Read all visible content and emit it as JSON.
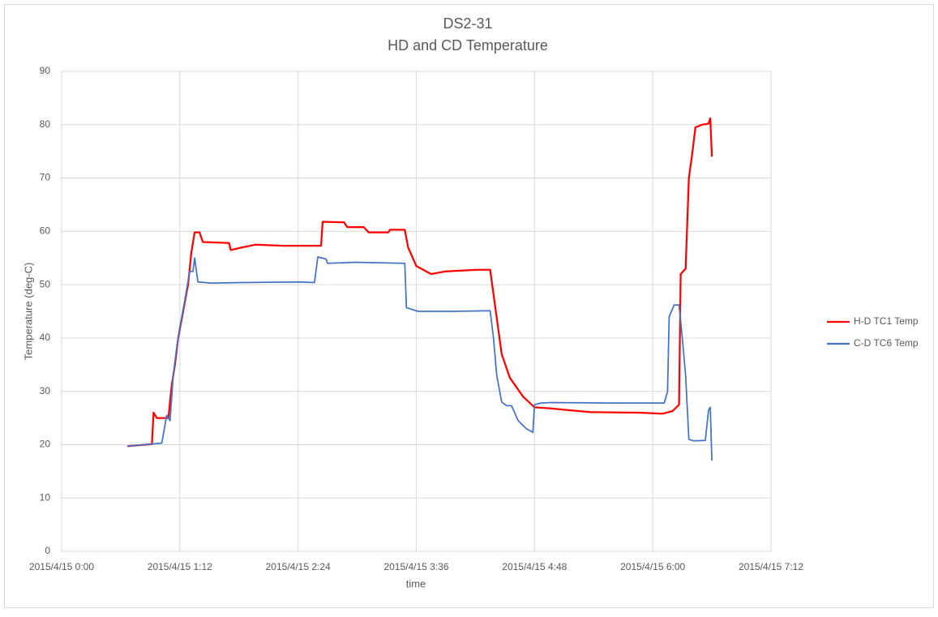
{
  "chart_data": {
    "type": "line",
    "title": "DS2-31",
    "subtitle": "HD and CD Temperature",
    "x_label": "time",
    "y_label": "Temperature (deg-C)",
    "xlim": [
      "2015/4/15 0:00",
      "2015/4/15 7:12"
    ],
    "xticks": [
      "2015/4/15 0:00",
      "2015/4/15 1:12",
      "2015/4/15 2:24",
      "2015/4/15 3:36",
      "2015/4/15 4:48",
      "2015/4/15 6:00",
      "2015/4/15 7:12"
    ],
    "ylim": [
      0,
      90
    ],
    "yticks": [
      0,
      10,
      20,
      30,
      40,
      50,
      60,
      70,
      80,
      90
    ],
    "grid": true,
    "legend": "right",
    "series": [
      {
        "name": "H-D TC1 Temp",
        "color": "#ff0000",
        "x": [
          "2015/4/15 0:40",
          "2015/4/15 0:55",
          "2015/4/15 0:56",
          "2015/4/15 0:58",
          "2015/4/15 1:05",
          "2015/4/15 1:07",
          "2015/4/15 1:09",
          "2015/4/15 1:11",
          "2015/4/15 1:14",
          "2015/4/15 1:17",
          "2015/4/15 1:19",
          "2015/4/15 1:21",
          "2015/4/15 1:24",
          "2015/4/15 1:26",
          "2015/4/15 1:42",
          "2015/4/15 1:43",
          "2015/4/15 1:50",
          "2015/4/15 1:58",
          "2015/4/15 2:15",
          "2015/4/15 2:38",
          "2015/4/15 2:39",
          "2015/4/15 2:52",
          "2015/4/15 2:54",
          "2015/4/15 3:04",
          "2015/4/15 3:07",
          "2015/4/15 3:19",
          "2015/4/15 3:20",
          "2015/4/15 3:29",
          "2015/4/15 3:31",
          "2015/4/15 3:36",
          "2015/4/15 3:39",
          "2015/4/15 3:45",
          "2015/4/15 3:54",
          "2015/4/15 4:13",
          "2015/4/15 4:21",
          "2015/4/15 4:24",
          "2015/4/15 4:28",
          "2015/4/15 4:33",
          "2015/4/15 4:41",
          "2015/4/15 4:48",
          "2015/4/15 4:58",
          "2015/4/15 5:08",
          "2015/4/15 5:22",
          "2015/4/15 5:52",
          "2015/4/15 6:06",
          "2015/4/15 6:12",
          "2015/4/15 6:16",
          "2015/4/15 6:17",
          "2015/4/15 6:20",
          "2015/4/15 6:22",
          "2015/4/15 6:24",
          "2015/4/15 6:26",
          "2015/4/15 6:30",
          "2015/4/15 6:34",
          "2015/4/15 6:35",
          "2015/4/15 6:36"
        ],
        "values": [
          19.7,
          20.1,
          26,
          25,
          25,
          31,
          35,
          40,
          45,
          50,
          56,
          59.8,
          59.8,
          58,
          57.8,
          56.5,
          57,
          57.5,
          57.3,
          57.3,
          61.8,
          61.7,
          60.8,
          60.8,
          59.8,
          59.8,
          60.3,
          60.3,
          57,
          53.5,
          53,
          52,
          52.5,
          52.8,
          52.8,
          46,
          37,
          32.5,
          29,
          27,
          26.8,
          26.5,
          26.1,
          26,
          25.8,
          26.3,
          27.5,
          52,
          53,
          70,
          74.5,
          79.5,
          80,
          80.2,
          81.2,
          74
        ]
      },
      {
        "name": "C-D TC6 Temp",
        "color": "#4472c4",
        "x": [
          "2015/4/15 0:40",
          "2015/4/15 1:01",
          "2015/4/15 1:04",
          "2015/4/15 1:06",
          "2015/4/15 1:08",
          "2015/4/15 1:10",
          "2015/4/15 1:12",
          "2015/4/15 1:15",
          "2015/4/15 1:18",
          "2015/4/15 1:20",
          "2015/4/15 1:21",
          "2015/4/15 1:23",
          "2015/4/15 1:31",
          "2015/4/15 1:50",
          "2015/4/15 2:25",
          "2015/4/15 2:34",
          "2015/4/15 2:36",
          "2015/4/15 2:41",
          "2015/4/15 2:42",
          "2015/4/15 2:59",
          "2015/4/15 3:29",
          "2015/4/15 3:30",
          "2015/4/15 3:35",
          "2015/4/15 3:37",
          "2015/4/15 3:59",
          "2015/4/15 4:21",
          "2015/4/15 4:23",
          "2015/4/15 4:25",
          "2015/4/15 4:28",
          "2015/4/15 4:31",
          "2015/4/15 4:34",
          "2015/4/15 4:38",
          "2015/4/15 4:43",
          "2015/4/15 4:47",
          "2015/4/15 4:48",
          "2015/4/15 4:52",
          "2015/4/15 4:58",
          "2015/4/15 5:37",
          "2015/4/15 6:07",
          "2015/4/15 6:09",
          "2015/4/15 6:10",
          "2015/4/15 6:13",
          "2015/4/15 6:16",
          "2015/4/15 6:18",
          "2015/4/15 6:20",
          "2015/4/15 6:22",
          "2015/4/15 6:25",
          "2015/4/15 6:32",
          "2015/4/15 6:34",
          "2015/4/15 6:35",
          "2015/4/15 6:36"
        ],
        "values": [
          19.7,
          20.3,
          25.5,
          24.5,
          33,
          38,
          42,
          47,
          52.5,
          52.5,
          55,
          50.5,
          50.3,
          50.4,
          50.5,
          50.4,
          55.2,
          54.8,
          54,
          54.2,
          54,
          45.7,
          45.2,
          45,
          45,
          45.1,
          40,
          33,
          28,
          27.3,
          27.3,
          24.5,
          23,
          22.3,
          27.5,
          27.8,
          27.9,
          27.8,
          27.8,
          30,
          44,
          46.2,
          46.2,
          40,
          33,
          21,
          20.7,
          20.8,
          26.5,
          27,
          17
        ]
      }
    ]
  }
}
